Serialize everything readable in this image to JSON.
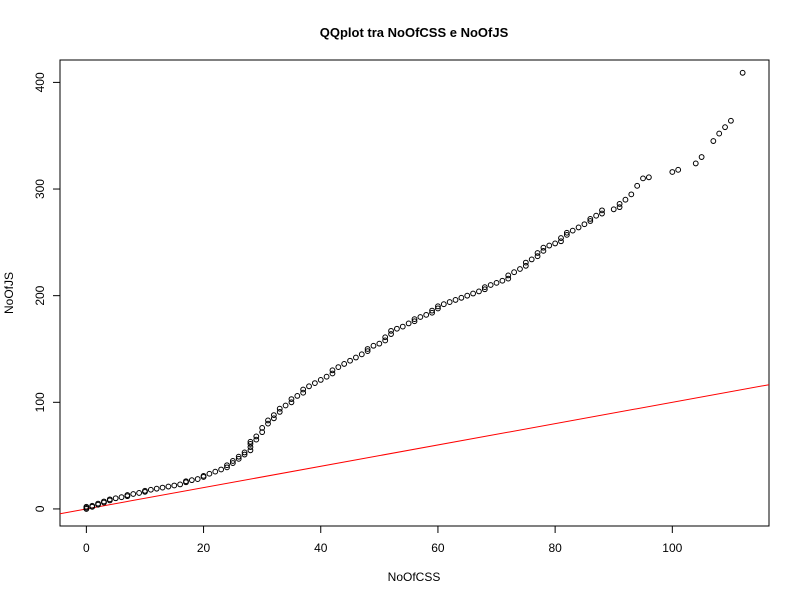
{
  "chart_data": {
    "type": "scatter",
    "title": "QQplot tra NoOfCSS e NoOfJS",
    "xlabel": "NoOfCSS",
    "ylabel": "NoOfJS",
    "xlim": [
      -4.5,
      116.5
    ],
    "ylim": [
      -16,
      421
    ],
    "x_ticks": [
      0,
      20,
      40,
      60,
      80,
      100
    ],
    "y_ticks": [
      0,
      100,
      200,
      300,
      400
    ],
    "grid": false,
    "legend": "none",
    "point_color": "#000000",
    "reference_line": {
      "color": "#ff0000",
      "intercept": 0,
      "slope": 1
    },
    "points": [
      [
        0,
        0
      ],
      [
        0,
        1
      ],
      [
        0,
        2
      ],
      [
        1,
        2
      ],
      [
        1,
        3
      ],
      [
        2,
        4
      ],
      [
        2,
        5
      ],
      [
        3,
        6
      ],
      [
        3,
        7
      ],
      [
        4,
        8
      ],
      [
        4,
        9
      ],
      [
        5,
        10
      ],
      [
        6,
        11
      ],
      [
        7,
        12
      ],
      [
        7,
        13
      ],
      [
        8,
        14
      ],
      [
        9,
        15
      ],
      [
        10,
        16
      ],
      [
        10,
        17
      ],
      [
        11,
        18
      ],
      [
        12,
        19
      ],
      [
        13,
        20
      ],
      [
        14,
        21
      ],
      [
        15,
        22
      ],
      [
        16,
        23
      ],
      [
        17,
        25
      ],
      [
        17,
        26
      ],
      [
        18,
        27
      ],
      [
        19,
        28
      ],
      [
        20,
        30
      ],
      [
        20,
        31
      ],
      [
        21,
        33
      ],
      [
        22,
        35
      ],
      [
        23,
        37
      ],
      [
        24,
        39
      ],
      [
        24,
        41
      ],
      [
        25,
        43
      ],
      [
        25,
        45
      ],
      [
        26,
        47
      ],
      [
        26,
        49
      ],
      [
        27,
        51
      ],
      [
        27,
        53
      ],
      [
        28,
        55
      ],
      [
        28,
        58
      ],
      [
        28,
        61
      ],
      [
        28,
        63
      ],
      [
        29,
        65
      ],
      [
        29,
        68
      ],
      [
        30,
        72
      ],
      [
        30,
        76
      ],
      [
        31,
        80
      ],
      [
        31,
        83
      ],
      [
        32,
        85
      ],
      [
        32,
        88
      ],
      [
        33,
        91
      ],
      [
        33,
        94
      ],
      [
        34,
        97
      ],
      [
        35,
        100
      ],
      [
        35,
        103
      ],
      [
        36,
        106
      ],
      [
        37,
        109
      ],
      [
        37,
        112
      ],
      [
        38,
        115
      ],
      [
        39,
        118
      ],
      [
        40,
        121
      ],
      [
        41,
        124
      ],
      [
        42,
        127
      ],
      [
        42,
        130
      ],
      [
        43,
        133
      ],
      [
        44,
        136
      ],
      [
        45,
        139
      ],
      [
        46,
        142
      ],
      [
        47,
        145
      ],
      [
        48,
        148
      ],
      [
        48,
        150
      ],
      [
        49,
        153
      ],
      [
        50,
        155
      ],
      [
        51,
        158
      ],
      [
        51,
        161
      ],
      [
        52,
        164
      ],
      [
        52,
        167
      ],
      [
        53,
        169
      ],
      [
        54,
        171
      ],
      [
        55,
        174
      ],
      [
        56,
        176
      ],
      [
        56,
        178
      ],
      [
        57,
        180
      ],
      [
        58,
        182
      ],
      [
        59,
        184
      ],
      [
        59,
        186
      ],
      [
        60,
        188
      ],
      [
        60,
        190
      ],
      [
        61,
        192
      ],
      [
        62,
        194
      ],
      [
        63,
        196
      ],
      [
        64,
        198
      ],
      [
        65,
        200
      ],
      [
        66,
        202
      ],
      [
        67,
        204
      ],
      [
        68,
        206
      ],
      [
        68,
        208
      ],
      [
        69,
        210
      ],
      [
        70,
        212
      ],
      [
        71,
        214
      ],
      [
        72,
        216
      ],
      [
        72,
        219
      ],
      [
        73,
        222
      ],
      [
        74,
        225
      ],
      [
        75,
        228
      ],
      [
        75,
        231
      ],
      [
        76,
        234
      ],
      [
        77,
        237
      ],
      [
        77,
        240
      ],
      [
        78,
        242
      ],
      [
        78,
        245
      ],
      [
        79,
        247
      ],
      [
        80,
        249
      ],
      [
        81,
        251
      ],
      [
        81,
        254
      ],
      [
        82,
        257
      ],
      [
        82,
        259
      ],
      [
        83,
        261
      ],
      [
        84,
        264
      ],
      [
        85,
        267
      ],
      [
        86,
        270
      ],
      [
        86,
        272
      ],
      [
        87,
        275
      ],
      [
        88,
        277
      ],
      [
        88,
        280
      ],
      [
        90,
        281
      ],
      [
        91,
        283
      ],
      [
        91,
        286
      ],
      [
        92,
        290
      ],
      [
        93,
        295
      ],
      [
        94,
        303
      ],
      [
        95,
        310
      ],
      [
        96,
        311
      ],
      [
        100,
        316
      ],
      [
        101,
        318
      ],
      [
        104,
        324
      ],
      [
        105,
        330
      ],
      [
        107,
        345
      ],
      [
        108,
        352
      ],
      [
        109,
        358
      ],
      [
        110,
        364
      ],
      [
        112,
        409
      ]
    ]
  }
}
